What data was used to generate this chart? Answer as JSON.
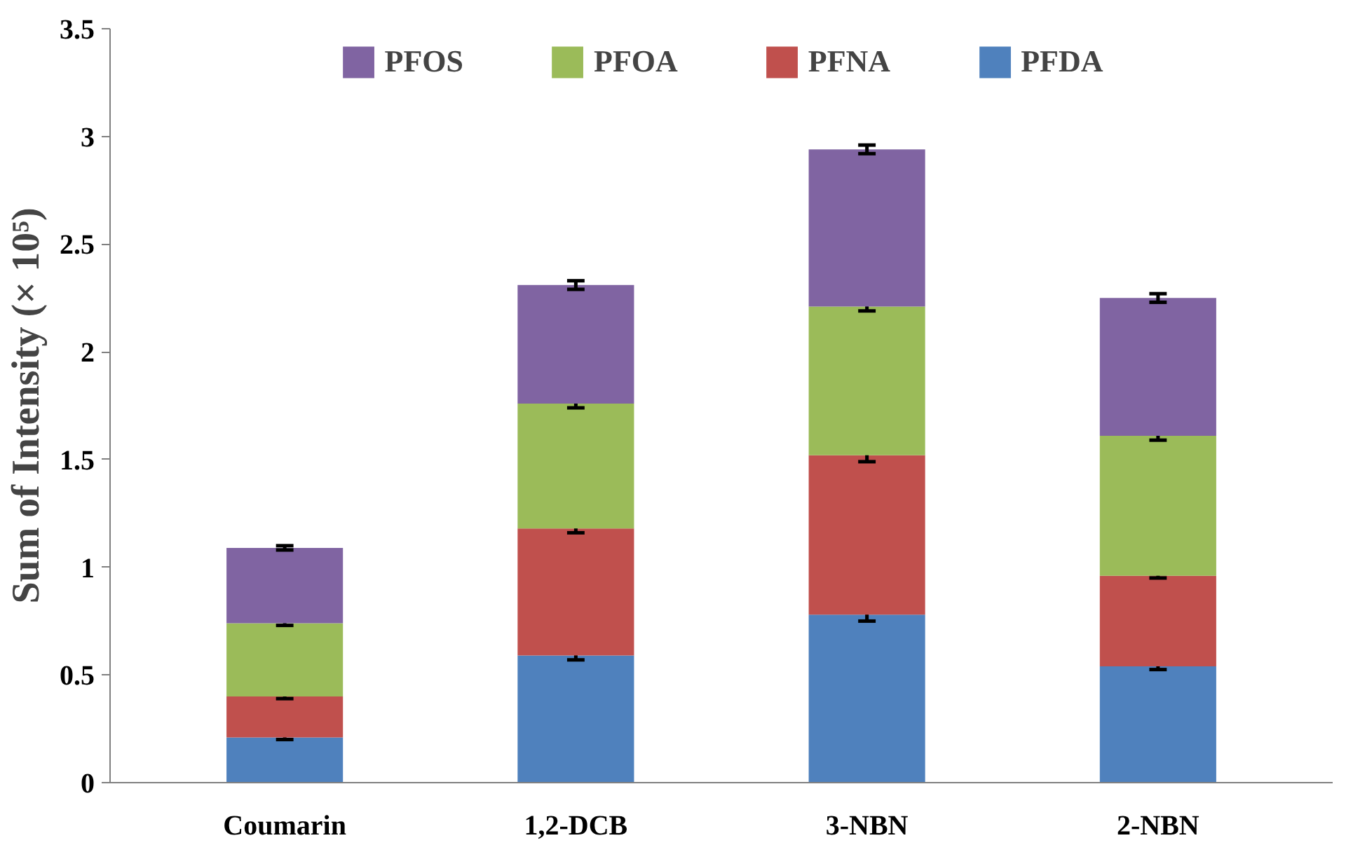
{
  "chart_data": {
    "type": "bar",
    "stacked": true,
    "ylabel": "Sum of Intensity (× 10⁵)",
    "categories": [
      "Coumarin",
      "1,2-DCB",
      "3-NBN",
      "2-NBN"
    ],
    "series": [
      {
        "name": "PFDA",
        "color": "#4f81bd",
        "values": [
          0.21,
          0.59,
          0.78,
          0.54
        ],
        "errors": [
          0.01,
          0.02,
          0.03,
          0.015
        ]
      },
      {
        "name": "PFNA",
        "color": "#c0504d",
        "values": [
          0.19,
          0.59,
          0.74,
          0.42
        ],
        "errors": [
          0.01,
          0.02,
          0.03,
          0.01
        ]
      },
      {
        "name": "PFOA",
        "color": "#9bbb59",
        "values": [
          0.34,
          0.58,
          0.69,
          0.65
        ],
        "errors": [
          0.01,
          0.02,
          0.02,
          0.02
        ]
      },
      {
        "name": "PFOS",
        "color": "#8064a2",
        "values": [
          0.35,
          0.55,
          0.73,
          0.64
        ],
        "errors": [
          0.01,
          0.02,
          0.02,
          0.02
        ]
      }
    ],
    "ylim": [
      0,
      3.5
    ],
    "yticks": [
      0,
      0.5,
      1,
      1.5,
      2,
      2.5,
      3,
      3.5
    ],
    "grid": false,
    "legend": "top"
  }
}
